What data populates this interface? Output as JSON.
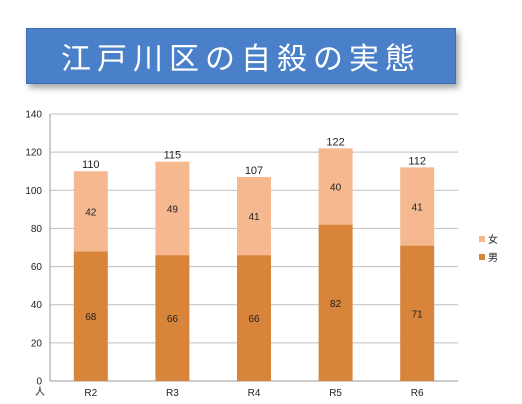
{
  "banner": {
    "title": "江戸川区の自殺の実態"
  },
  "colors": {
    "banner": "#4a7fc9",
    "male": "#d8843a",
    "female": "#f6b98f",
    "grid": "#bfbfbf"
  },
  "chart_data": {
    "type": "bar",
    "stacked": true,
    "title": "",
    "xlabel": "",
    "ylabel": "人",
    "ylim": [
      0,
      140
    ],
    "yticks": [
      0,
      20,
      40,
      60,
      80,
      100,
      120,
      140
    ],
    "grid": true,
    "legend_position": "right",
    "categories": [
      "R2",
      "R3",
      "R4",
      "R5",
      "R6"
    ],
    "series": [
      {
        "name": "男",
        "values": [
          68,
          66,
          66,
          82,
          71
        ],
        "color": "#d8843a"
      },
      {
        "name": "女",
        "values": [
          42,
          49,
          41,
          40,
          41
        ],
        "color": "#f6b98f"
      }
    ],
    "totals": [
      110,
      115,
      107,
      122,
      112
    ]
  }
}
